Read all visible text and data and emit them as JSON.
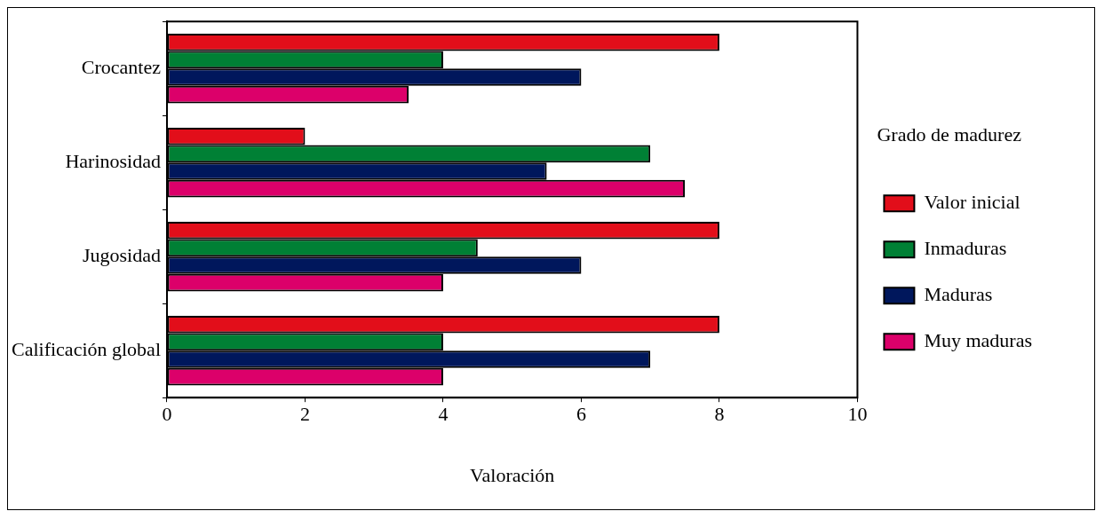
{
  "chart_data": {
    "type": "bar",
    "orientation": "horizontal",
    "xlabel": "Valoración",
    "legend_title": "Grado de madurez",
    "legend": "right",
    "categories": [
      "Crocantez",
      "Harinosidad",
      "Jugosidad",
      "Calificación global"
    ],
    "series": [
      {
        "name": "Valor inicial",
        "color": "#e20e1a",
        "values": [
          8,
          2,
          8,
          8
        ]
      },
      {
        "name": "Inmaduras",
        "color": "#008035",
        "values": [
          4,
          7,
          4.5,
          4
        ]
      },
      {
        "name": "Maduras",
        "color": "#00175c",
        "values": [
          6,
          5.5,
          6,
          7
        ]
      },
      {
        "name": "Muy maduras",
        "color": "#dc006a",
        "values": [
          3.5,
          7.5,
          4,
          4
        ]
      }
    ],
    "xlim": [
      0,
      10
    ],
    "xticks": [
      0,
      2,
      4,
      6,
      8,
      10
    ],
    "grid": false
  }
}
